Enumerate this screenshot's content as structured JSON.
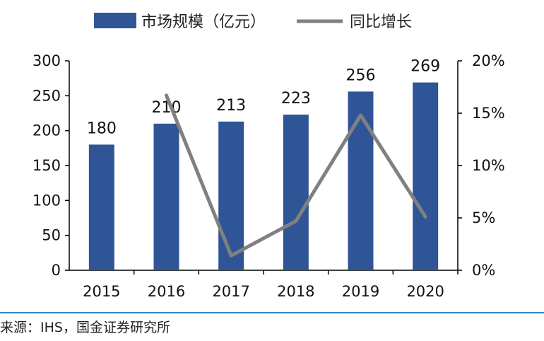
{
  "colors": {
    "bar": "#2f5597",
    "line": "#808080",
    "axis": "#000000",
    "rule": "#2e86c1"
  },
  "legend": {
    "bar_label": "市场规模（亿元）",
    "line_label": "同比增长"
  },
  "source": "来源：IHS，国金证券研究所",
  "chart_data": {
    "type": "bar",
    "categories": [
      "2015",
      "2016",
      "2017",
      "2018",
      "2019",
      "2020"
    ],
    "series": [
      {
        "name": "市场规模（亿元）",
        "type": "bar",
        "axis": "left",
        "values": [
          180,
          210,
          213,
          223,
          256,
          269
        ]
      },
      {
        "name": "同比增长",
        "type": "line",
        "axis": "right",
        "values": [
          null,
          16.7,
          1.4,
          4.7,
          14.8,
          5.1
        ]
      }
    ],
    "y_left": {
      "min": 0,
      "max": 300,
      "ticks": [
        "0",
        "50",
        "100",
        "150",
        "200",
        "250",
        "300"
      ]
    },
    "y_right": {
      "min": 0,
      "max": 20,
      "ticks": [
        "0%",
        "5%",
        "10%",
        "15%",
        "20%"
      ]
    },
    "data_labels": [
      "180",
      "210",
      "213",
      "223",
      "256",
      "269"
    ],
    "legend_position": "top",
    "grid": false
  }
}
